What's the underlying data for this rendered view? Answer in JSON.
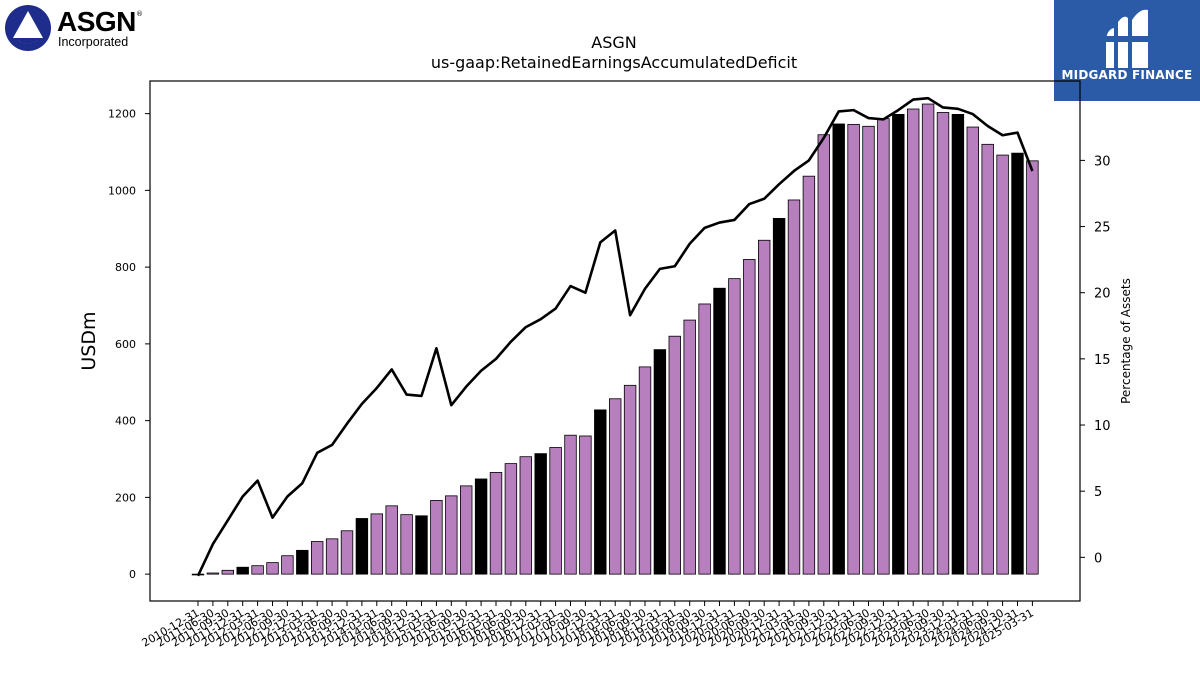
{
  "logos": {
    "left": {
      "name": "ASGN",
      "subtitle": "Incorporated",
      "mark": "®",
      "color": "#1e2d8c"
    },
    "right": {
      "name": "MIDGARD FINANCE",
      "color": "#2b5aa6"
    }
  },
  "chart_data": {
    "type": "bar",
    "title": "ASGN",
    "subtitle": "us-gaap:RetainedEarningsAccumulatedDeficit",
    "ylabel": "USDm",
    "y2label": "Percentage of Assets",
    "ylim": [
      -70,
      1285
    ],
    "y2lim": [
      -3.3,
      36.0
    ],
    "yticks": [
      0,
      200,
      400,
      600,
      800,
      1000,
      1200
    ],
    "y2ticks": [
      0,
      5,
      10,
      15,
      20,
      25,
      30
    ],
    "colors": {
      "bar_default": "#b77fbd",
      "bar_highlight": "#000000",
      "line": "#000000"
    },
    "categories": [
      "2010-12-31",
      "2011-06-30",
      "2011-09-30",
      "2011-12-31",
      "2012-03-31",
      "2012-06-30",
      "2012-09-30",
      "2012-12-31",
      "2013-03-31",
      "2013-06-30",
      "2013-09-30",
      "2013-12-31",
      "2014-03-31",
      "2014-06-30",
      "2014-09-30",
      "2014-12-31",
      "2015-03-31",
      "2015-06-30",
      "2015-09-30",
      "2015-12-31",
      "2016-03-31",
      "2016-06-30",
      "2016-09-30",
      "2016-12-31",
      "2017-03-31",
      "2017-06-30",
      "2017-09-30",
      "2017-12-31",
      "2018-03-31",
      "2018-06-30",
      "2018-09-30",
      "2018-12-31",
      "2019-03-31",
      "2019-06-30",
      "2019-09-30",
      "2019-12-31",
      "2020-03-31",
      "2020-06-30",
      "2020-09-30",
      "2020-12-31",
      "2021-03-31",
      "2021-06-30",
      "2021-09-30",
      "2021-12-31",
      "2022-03-31",
      "2022-06-30",
      "2022-09-30",
      "2022-12-31",
      "2023-03-31",
      "2023-06-30",
      "2023-09-30",
      "2023-12-31",
      "2024-03-31",
      "2024-06-30",
      "2024-09-30",
      "2024-12-31",
      "2025-03-31"
    ],
    "series": [
      {
        "values": [
          -2,
          3,
          10,
          18,
          22,
          30,
          48,
          62,
          85,
          92,
          113,
          145,
          157,
          178,
          155,
          152,
          192,
          204,
          230,
          248,
          265,
          288,
          306,
          314,
          330,
          362,
          360,
          428,
          457,
          492,
          540,
          585,
          620,
          662,
          704,
          745,
          770,
          820,
          870,
          927,
          975,
          1037,
          1145,
          1173,
          1172,
          1167,
          1187,
          1198,
          1212,
          1225,
          1203,
          1198,
          1165,
          1120,
          1092,
          1097,
          1077
        ],
        "highlight": [
          false,
          false,
          false,
          true,
          false,
          false,
          false,
          true,
          false,
          false,
          false,
          true,
          false,
          false,
          false,
          true,
          false,
          false,
          false,
          true,
          false,
          false,
          false,
          true,
          false,
          false,
          false,
          true,
          false,
          false,
          false,
          true,
          false,
          false,
          false,
          true,
          false,
          false,
          false,
          true,
          false,
          false,
          false,
          true,
          false,
          false,
          false,
          true,
          false,
          false,
          false,
          true,
          false,
          false,
          false,
          true,
          false
        ]
      },
      {
        "name": "Percentage of Assets",
        "axis": "right",
        "values": [
          -1.4,
          1.0,
          2.8,
          4.6,
          5.8,
          3.0,
          4.6,
          5.6,
          7.9,
          8.5,
          10.1,
          11.6,
          12.8,
          14.2,
          12.3,
          12.2,
          15.8,
          11.5,
          12.9,
          14.1,
          15.0,
          16.3,
          17.4,
          18.0,
          18.8,
          20.5,
          20.0,
          23.8,
          24.7,
          18.3,
          20.3,
          21.8,
          22.0,
          23.7,
          24.9,
          25.3,
          25.5,
          26.7,
          27.1,
          28.2,
          29.2,
          30.0,
          31.7,
          33.7,
          33.8,
          33.2,
          33.1,
          33.8,
          34.6,
          34.7,
          34.0,
          33.9,
          33.5,
          32.6,
          31.9,
          32.1,
          29.2
        ]
      }
    ]
  }
}
